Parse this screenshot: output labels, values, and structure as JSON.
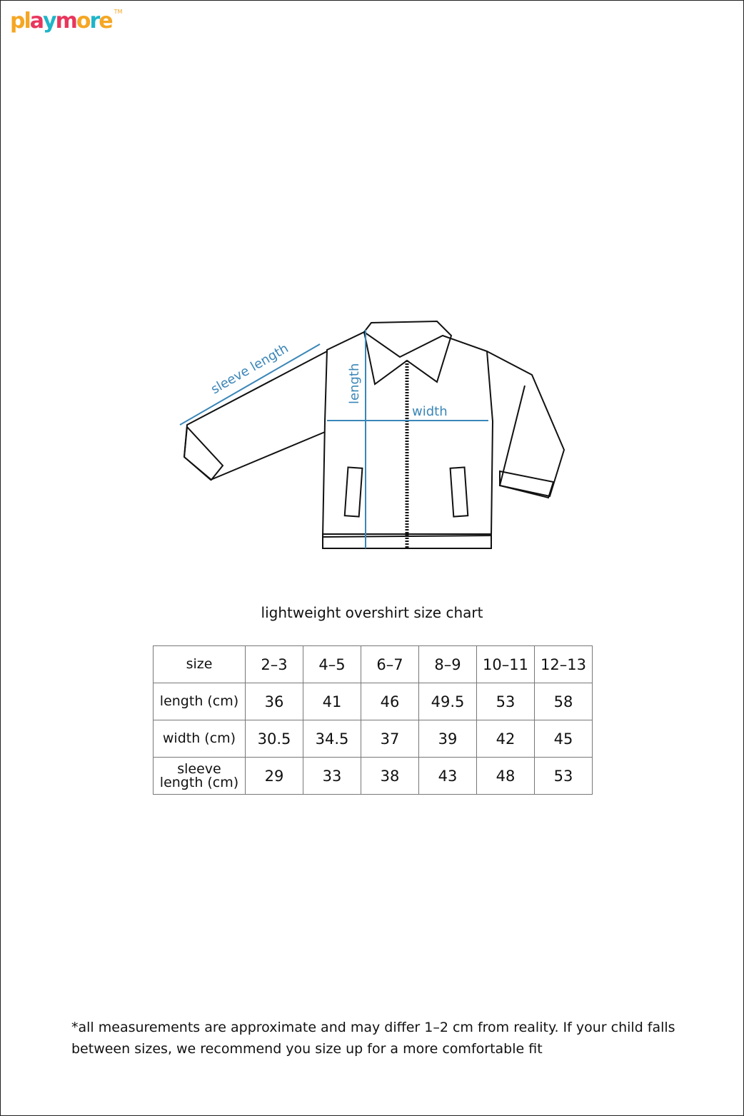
{
  "logo": {
    "text": "playmore",
    "trademark": "TM",
    "letter_colors": [
      "#f5a623",
      "#f5a623",
      "#e8365d",
      "#1fb5c9",
      "#e8365d",
      "#f5a623",
      "#1fb5c9",
      "#f5a623"
    ]
  },
  "diagram": {
    "labels": {
      "sleeve": "sleeve length",
      "length": "length",
      "width": "width"
    },
    "measure_color": "#3a86b8"
  },
  "chart_title": "lightweight overshirt size chart",
  "table": {
    "header": {
      "label": "size",
      "values": [
        "2–3",
        "4–5",
        "6–7",
        "8–9",
        "10–11",
        "12–13"
      ]
    },
    "rows": [
      {
        "label": "length (cm)",
        "values": [
          "36",
          "41",
          "46",
          "49.5",
          "53",
          "58"
        ]
      },
      {
        "label": "width (cm)",
        "values": [
          "30.5",
          "34.5",
          "37",
          "39",
          "42",
          "45"
        ]
      },
      {
        "label": "sleeve length (cm)",
        "values": [
          "29",
          "33",
          "38",
          "43",
          "48",
          "53"
        ]
      }
    ]
  },
  "footnote": "*all measurements are approximate and may differ 1–2 cm  from reality. If your child falls between sizes, we recommend you size up for a more comfortable fit"
}
